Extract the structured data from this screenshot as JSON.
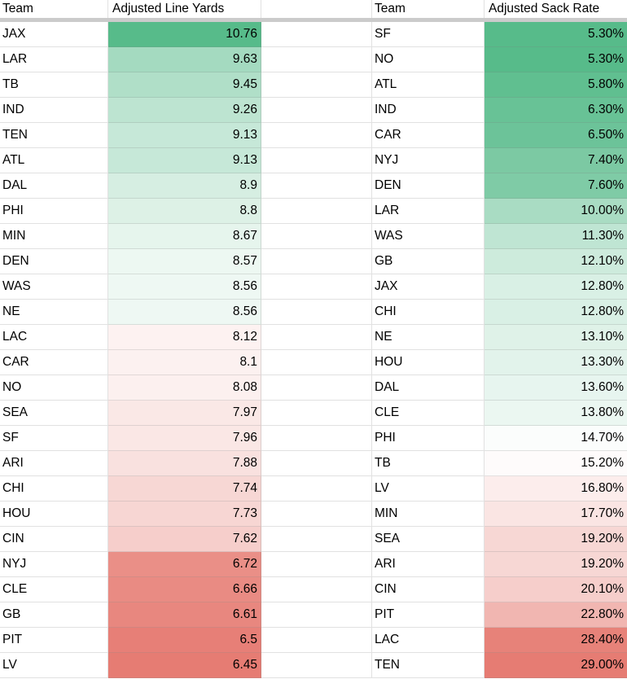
{
  "sheet": {
    "left_table": {
      "team_header": "Team",
      "value_header": "Adjusted Line Yards"
    },
    "right_table": {
      "team_header": "Team",
      "value_header": "Adjusted Sack Rate"
    },
    "left_rows": [
      {
        "team": "JAX",
        "value": "10.76",
        "bg": "#57bb8a"
      },
      {
        "team": "LAR",
        "value": "9.63",
        "bg": "#a4dac0"
      },
      {
        "team": "TB",
        "value": "9.45",
        "bg": "#b0dfc8"
      },
      {
        "team": "IND",
        "value": "9.26",
        "bg": "#bde4d1"
      },
      {
        "team": "TEN",
        "value": "9.13",
        "bg": "#c6e8d8"
      },
      {
        "team": "ATL",
        "value": "9.13",
        "bg": "#c6e8d8"
      },
      {
        "team": "DAL",
        "value": "8.9",
        "bg": "#d6eee2"
      },
      {
        "team": "PHI",
        "value": "8.8",
        "bg": "#ddf1e6"
      },
      {
        "team": "MIN",
        "value": "8.67",
        "bg": "#e6f5ed"
      },
      {
        "team": "DEN",
        "value": "8.57",
        "bg": "#edf8f2"
      },
      {
        "team": "WAS",
        "value": "8.56",
        "bg": "#eef8f3"
      },
      {
        "team": "NE",
        "value": "8.56",
        "bg": "#eef8f3"
      },
      {
        "team": "LAC",
        "value": "8.12",
        "bg": "#fdf2f1"
      },
      {
        "team": "CAR",
        "value": "8.1",
        "bg": "#fcf1f0"
      },
      {
        "team": "NO",
        "value": "8.08",
        "bg": "#fcf0ef"
      },
      {
        "team": "SEA",
        "value": "7.97",
        "bg": "#fae8e6"
      },
      {
        "team": "SF",
        "value": "7.96",
        "bg": "#fae7e5"
      },
      {
        "team": "ARI",
        "value": "7.88",
        "bg": "#f9e1df"
      },
      {
        "team": "CHI",
        "value": "7.74",
        "bg": "#f7d7d4"
      },
      {
        "team": "HOU",
        "value": "7.73",
        "bg": "#f7d6d3"
      },
      {
        "team": "CIN",
        "value": "7.62",
        "bg": "#f6cecb"
      },
      {
        "team": "NYJ",
        "value": "6.72",
        "bg": "#ea8f87"
      },
      {
        "team": "CLE",
        "value": "6.66",
        "bg": "#e98b83"
      },
      {
        "team": "GB",
        "value": "6.61",
        "bg": "#e8877f"
      },
      {
        "team": "PIT",
        "value": "6.5",
        "bg": "#e77f77"
      },
      {
        "team": "LV",
        "value": "6.45",
        "bg": "#e67c73"
      }
    ],
    "right_rows": [
      {
        "team": "SF",
        "value": "5.30%",
        "bg": "#57bb8a"
      },
      {
        "team": "NO",
        "value": "5.30%",
        "bg": "#57bb8a"
      },
      {
        "team": "ATL",
        "value": "5.80%",
        "bg": "#60bf90"
      },
      {
        "team": "IND",
        "value": "6.30%",
        "bg": "#68c296"
      },
      {
        "team": "CAR",
        "value": "6.50%",
        "bg": "#6cc399"
      },
      {
        "team": "NYJ",
        "value": "7.40%",
        "bg": "#7cc9a3"
      },
      {
        "team": "DEN",
        "value": "7.60%",
        "bg": "#7fcba6"
      },
      {
        "team": "LAR",
        "value": "10.00%",
        "bg": "#a9dcc3"
      },
      {
        "team": "WAS",
        "value": "11.30%",
        "bg": "#bfe5d3"
      },
      {
        "team": "GB",
        "value": "12.10%",
        "bg": "#cdebdc"
      },
      {
        "team": "JAX",
        "value": "12.80%",
        "bg": "#d9f0e5"
      },
      {
        "team": "CHI",
        "value": "12.80%",
        "bg": "#d9f0e5"
      },
      {
        "team": "NE",
        "value": "13.10%",
        "bg": "#dff2e8"
      },
      {
        "team": "HOU",
        "value": "13.30%",
        "bg": "#e2f3eb"
      },
      {
        "team": "DAL",
        "value": "13.60%",
        "bg": "#e7f5ef"
      },
      {
        "team": "CLE",
        "value": "13.80%",
        "bg": "#ebf7f1"
      },
      {
        "team": "PHI",
        "value": "14.70%",
        "bg": "#fbfdfc"
      },
      {
        "team": "TB",
        "value": "15.20%",
        "bg": "#fefbfb"
      },
      {
        "team": "LV",
        "value": "16.80%",
        "bg": "#fcedec"
      },
      {
        "team": "MIN",
        "value": "17.70%",
        "bg": "#fae5e3"
      },
      {
        "team": "SEA",
        "value": "19.20%",
        "bg": "#f7d7d4"
      },
      {
        "team": "ARI",
        "value": "19.20%",
        "bg": "#f7d7d4"
      },
      {
        "team": "CIN",
        "value": "20.10%",
        "bg": "#f6cecb"
      },
      {
        "team": "PIT",
        "value": "22.80%",
        "bg": "#f1b6b1"
      },
      {
        "team": "LAC",
        "value": "28.40%",
        "bg": "#e78279"
      },
      {
        "team": "TEN",
        "value": "29.00%",
        "bg": "#e67c73"
      }
    ],
    "colors": {
      "gradient_high_green": "#57bb8a",
      "gradient_low_red": "#e67c73",
      "frozen_divider": "#cbcbcb",
      "gridline": "#e1e1e1"
    }
  }
}
